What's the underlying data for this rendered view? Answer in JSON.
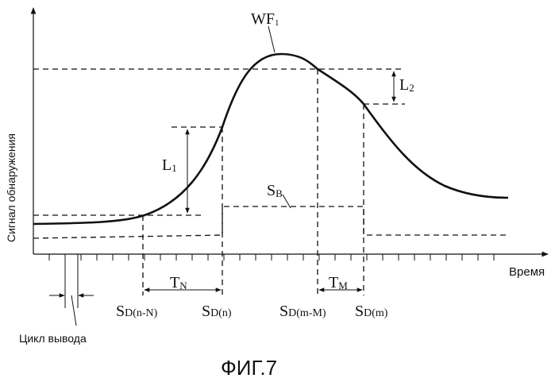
{
  "figure": {
    "caption": "ФИГ.7",
    "y_axis_label": "Сигнал обнаружения",
    "x_axis_label": "Время",
    "curve_label": {
      "main": "WF",
      "sub": "1"
    },
    "l1": {
      "main": "L",
      "sub": "1"
    },
    "l2": {
      "main": "L",
      "sub": "2"
    },
    "sb": {
      "main": "S",
      "sub": "B"
    },
    "tn": {
      "main": "T",
      "sub": "N"
    },
    "tm": {
      "main": "T",
      "sub": "M"
    },
    "sd_labels": [
      {
        "main": "S",
        "sub": "D(n-N)"
      },
      {
        "main": "S",
        "sub": "D(n)"
      },
      {
        "main": "S",
        "sub": "D(m-M)"
      },
      {
        "main": "S",
        "sub": "D(m)"
      }
    ],
    "cycle_label": "Цикл вывода"
  }
}
